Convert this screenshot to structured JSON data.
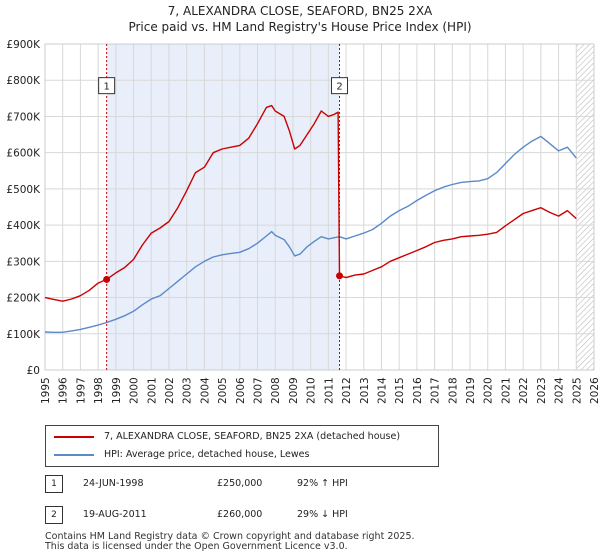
{
  "header": {
    "title_line1": "7, ALEXANDRA CLOSE, SEAFORD, BN25 2XA",
    "title_line2": "Price paid vs. HM Land Registry's House Price Index (HPI)"
  },
  "chart_data": {
    "type": "line",
    "xlim": [
      1995,
      2026
    ],
    "ylim": [
      0,
      900000
    ],
    "y_ticks": [
      {
        "value": 0,
        "label": "£0"
      },
      {
        "value": 100000,
        "label": "£100K"
      },
      {
        "value": 200000,
        "label": "£200K"
      },
      {
        "value": 300000,
        "label": "£300K"
      },
      {
        "value": 400000,
        "label": "£400K"
      },
      {
        "value": 500000,
        "label": "£500K"
      },
      {
        "value": 600000,
        "label": "£600K"
      },
      {
        "value": 700000,
        "label": "£700K"
      },
      {
        "value": 800000,
        "label": "£800K"
      },
      {
        "value": 900000,
        "label": "£900K"
      }
    ],
    "x_ticks": [
      "1995",
      "1996",
      "1997",
      "1998",
      "1999",
      "2000",
      "2001",
      "2002",
      "2003",
      "2004",
      "2005",
      "2006",
      "2007",
      "2008",
      "2009",
      "2010",
      "2011",
      "2012",
      "2013",
      "2014",
      "2015",
      "2016",
      "2017",
      "2018",
      "2019",
      "2020",
      "2021",
      "2022",
      "2023",
      "2024",
      "2025",
      "2026"
    ],
    "shaded_period": [
      1998.48,
      2011.63
    ],
    "hatched_from": 2025.0,
    "series": [
      {
        "name": "7, ALEXANDRA CLOSE, SEAFORD, BN25 2XA (detached house)",
        "color": "#cc0000",
        "points": [
          [
            1995.0,
            200000
          ],
          [
            1995.5,
            195000
          ],
          [
            1996.0,
            190000
          ],
          [
            1996.5,
            196000
          ],
          [
            1997.0,
            205000
          ],
          [
            1997.5,
            220000
          ],
          [
            1998.0,
            240000
          ],
          [
            1998.48,
            250000
          ],
          [
            1999.0,
            268000
          ],
          [
            1999.5,
            283000
          ],
          [
            2000.0,
            305000
          ],
          [
            2000.5,
            345000
          ],
          [
            2001.0,
            378000
          ],
          [
            2001.5,
            392000
          ],
          [
            2002.0,
            410000
          ],
          [
            2002.5,
            448000
          ],
          [
            2003.0,
            495000
          ],
          [
            2003.5,
            545000
          ],
          [
            2004.0,
            560000
          ],
          [
            2004.5,
            600000
          ],
          [
            2005.0,
            610000
          ],
          [
            2005.5,
            615000
          ],
          [
            2006.0,
            620000
          ],
          [
            2006.5,
            640000
          ],
          [
            2007.0,
            680000
          ],
          [
            2007.5,
            725000
          ],
          [
            2007.8,
            730000
          ],
          [
            2008.0,
            715000
          ],
          [
            2008.5,
            700000
          ],
          [
            2008.8,
            660000
          ],
          [
            2009.1,
            610000
          ],
          [
            2009.4,
            620000
          ],
          [
            2009.8,
            650000
          ],
          [
            2010.2,
            680000
          ],
          [
            2010.6,
            715000
          ],
          [
            2011.0,
            700000
          ],
          [
            2011.3,
            705000
          ],
          [
            2011.55,
            712000
          ],
          [
            2011.63,
            260000
          ],
          [
            2012.0,
            255000
          ],
          [
            2012.5,
            262000
          ],
          [
            2013.0,
            265000
          ],
          [
            2013.5,
            275000
          ],
          [
            2014.0,
            285000
          ],
          [
            2014.5,
            300000
          ],
          [
            2015.0,
            310000
          ],
          [
            2015.5,
            320000
          ],
          [
            2016.0,
            330000
          ],
          [
            2016.5,
            340000
          ],
          [
            2017.0,
            352000
          ],
          [
            2017.5,
            358000
          ],
          [
            2018.0,
            362000
          ],
          [
            2018.5,
            368000
          ],
          [
            2019.0,
            370000
          ],
          [
            2019.5,
            372000
          ],
          [
            2020.0,
            375000
          ],
          [
            2020.5,
            380000
          ],
          [
            2021.0,
            398000
          ],
          [
            2021.5,
            415000
          ],
          [
            2022.0,
            432000
          ],
          [
            2022.5,
            440000
          ],
          [
            2023.0,
            448000
          ],
          [
            2023.5,
            435000
          ],
          [
            2024.0,
            425000
          ],
          [
            2024.5,
            440000
          ],
          [
            2025.0,
            418000
          ]
        ]
      },
      {
        "name": "HPI: Average price, detached house, Lewes",
        "color": "#5b8ac7",
        "points": [
          [
            1995.0,
            105000
          ],
          [
            1995.5,
            104000
          ],
          [
            1996.0,
            104000
          ],
          [
            1996.5,
            108000
          ],
          [
            1997.0,
            112000
          ],
          [
            1997.5,
            118000
          ],
          [
            1998.0,
            124000
          ],
          [
            1998.48,
            131000
          ],
          [
            1999.0,
            140000
          ],
          [
            1999.5,
            150000
          ],
          [
            2000.0,
            162000
          ],
          [
            2000.5,
            180000
          ],
          [
            2001.0,
            196000
          ],
          [
            2001.5,
            205000
          ],
          [
            2002.0,
            225000
          ],
          [
            2002.5,
            245000
          ],
          [
            2003.0,
            265000
          ],
          [
            2003.5,
            285000
          ],
          [
            2004.0,
            300000
          ],
          [
            2004.5,
            312000
          ],
          [
            2005.0,
            318000
          ],
          [
            2005.5,
            322000
          ],
          [
            2006.0,
            325000
          ],
          [
            2006.5,
            335000
          ],
          [
            2007.0,
            350000
          ],
          [
            2007.5,
            370000
          ],
          [
            2007.8,
            382000
          ],
          [
            2008.0,
            372000
          ],
          [
            2008.5,
            360000
          ],
          [
            2008.8,
            340000
          ],
          [
            2009.1,
            315000
          ],
          [
            2009.4,
            320000
          ],
          [
            2009.8,
            340000
          ],
          [
            2010.2,
            355000
          ],
          [
            2010.6,
            368000
          ],
          [
            2011.0,
            362000
          ],
          [
            2011.3,
            365000
          ],
          [
            2011.63,
            368000
          ],
          [
            2012.0,
            362000
          ],
          [
            2012.5,
            370000
          ],
          [
            2013.0,
            378000
          ],
          [
            2013.5,
            388000
          ],
          [
            2014.0,
            405000
          ],
          [
            2014.5,
            425000
          ],
          [
            2015.0,
            440000
          ],
          [
            2015.5,
            452000
          ],
          [
            2016.0,
            468000
          ],
          [
            2016.5,
            482000
          ],
          [
            2017.0,
            495000
          ],
          [
            2017.5,
            505000
          ],
          [
            2018.0,
            512000
          ],
          [
            2018.5,
            518000
          ],
          [
            2019.0,
            520000
          ],
          [
            2019.5,
            522000
          ],
          [
            2020.0,
            528000
          ],
          [
            2020.5,
            545000
          ],
          [
            2021.0,
            570000
          ],
          [
            2021.5,
            595000
          ],
          [
            2022.0,
            615000
          ],
          [
            2022.5,
            632000
          ],
          [
            2023.0,
            645000
          ],
          [
            2023.5,
            625000
          ],
          [
            2024.0,
            605000
          ],
          [
            2024.5,
            615000
          ],
          [
            2025.0,
            585000
          ]
        ]
      }
    ],
    "markers": [
      {
        "label": "1",
        "x": 1998.48,
        "y": 250000,
        "box_y": 785000
      },
      {
        "label": "2",
        "x": 2011.63,
        "y": 260000,
        "box_y": 785000
      }
    ]
  },
  "legend": {
    "items": [
      {
        "label": "7, ALEXANDRA CLOSE, SEAFORD, BN25 2XA (detached house)",
        "color": "#cc0000"
      },
      {
        "label": "HPI: Average price, detached house, Lewes",
        "color": "#5b8ac7"
      }
    ]
  },
  "transactions": [
    {
      "num": "1",
      "date": "24-JUN-1998",
      "price": "£250,000",
      "hpi": "92% ↑ HPI"
    },
    {
      "num": "2",
      "date": "19-AUG-2011",
      "price": "£260,000",
      "hpi": "29% ↓ HPI"
    }
  ],
  "footer": {
    "line1": "Contains HM Land Registry data © Crown copyright and database right 2025.",
    "line2": "This data is licensed under the Open Government Licence v3.0."
  }
}
